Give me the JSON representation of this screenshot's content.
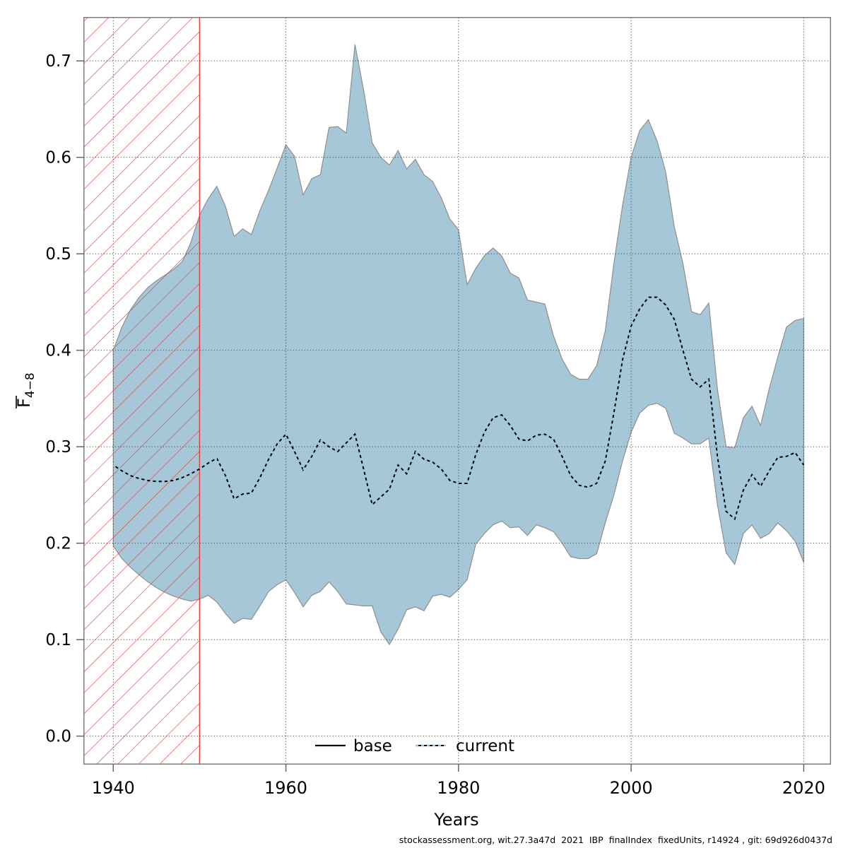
{
  "footer": {
    "text": "stockassessment.org, wit.27.3a47d  2021  IBP  finalIndex  fixedUnits, r14924 , git: 69d926d0437d"
  },
  "chart_data": {
    "type": "area",
    "title": "",
    "xlabel": "Years",
    "ylabel": {
      "main": "F",
      "subscript": "4−8",
      "overline": true
    },
    "x_ticks": [
      1940,
      1960,
      1980,
      2000,
      2020
    ],
    "y_ticks": [
      0.0,
      0.1,
      0.2,
      0.3,
      0.4,
      0.5,
      0.6,
      0.7
    ],
    "xlim": [
      1936.6,
      2023.1
    ],
    "ylim": [
      -0.029,
      0.745
    ],
    "grid": true,
    "legend_position": "bottom-center-inside",
    "legend": [
      {
        "label": "base",
        "line_style": "solid",
        "color": "#000000"
      },
      {
        "label": "current",
        "line_style": "dotted",
        "color": "#9dc6de"
      }
    ],
    "excluded_region": {
      "x_start": 1936.6,
      "x_end": 1950,
      "style": "red-diagonal-hatch"
    },
    "colors": {
      "band_fill": "#a6c7d8",
      "band_edge": "#8f8f8f",
      "base_line": "#000000",
      "current_line": "#9dc6de",
      "hatch_red": "#e83b3b",
      "grid": "#4a4a4a",
      "frame": "#7d7d7d",
      "tick": "#666666"
    },
    "years": [
      1940,
      1941,
      1942,
      1943,
      1944,
      1945,
      1946,
      1947,
      1948,
      1949,
      1950,
      1951,
      1952,
      1953,
      1954,
      1955,
      1956,
      1957,
      1958,
      1959,
      1960,
      1961,
      1962,
      1963,
      1964,
      1965,
      1966,
      1967,
      1968,
      1969,
      1970,
      1971,
      1972,
      1973,
      1974,
      1975,
      1976,
      1977,
      1978,
      1979,
      1980,
      1981,
      1982,
      1983,
      1984,
      1985,
      1986,
      1987,
      1988,
      1989,
      1990,
      1991,
      1992,
      1993,
      1994,
      1995,
      1996,
      1997,
      1998,
      1999,
      2000,
      2001,
      2002,
      2003,
      2004,
      2005,
      2006,
      2007,
      2008,
      2009,
      2010,
      2011,
      2012,
      2013,
      2014,
      2015,
      2016,
      2017,
      2018,
      2019,
      2020
    ],
    "line": {
      "name": "current (base coincides)",
      "values": [
        0.281,
        0.275,
        0.27,
        0.267,
        0.265,
        0.264,
        0.264,
        0.265,
        0.268,
        0.272,
        0.277,
        0.283,
        0.288,
        0.27,
        0.246,
        0.251,
        0.252,
        0.268,
        0.287,
        0.303,
        0.313,
        0.295,
        0.276,
        0.29,
        0.307,
        0.3,
        0.295,
        0.304,
        0.313,
        0.277,
        0.24,
        0.248,
        0.256,
        0.281,
        0.272,
        0.295,
        0.287,
        0.284,
        0.277,
        0.265,
        0.262,
        0.262,
        0.292,
        0.315,
        0.33,
        0.333,
        0.322,
        0.308,
        0.306,
        0.312,
        0.313,
        0.308,
        0.29,
        0.27,
        0.26,
        0.258,
        0.262,
        0.285,
        0.335,
        0.39,
        0.425,
        0.443,
        0.455,
        0.455,
        0.447,
        0.432,
        0.4,
        0.37,
        0.362,
        0.37,
        0.29,
        0.233,
        0.225,
        0.255,
        0.271,
        0.259,
        0.275,
        0.289,
        0.29,
        0.294,
        0.281
      ]
    },
    "band": {
      "upper": [
        0.4,
        0.424,
        0.442,
        0.455,
        0.465,
        0.472,
        0.478,
        0.484,
        0.492,
        0.512,
        0.54,
        0.557,
        0.57,
        0.549,
        0.518,
        0.526,
        0.52,
        0.545,
        0.566,
        0.589,
        0.613,
        0.601,
        0.561,
        0.578,
        0.582,
        0.631,
        0.632,
        0.625,
        0.717,
        0.67,
        0.615,
        0.6,
        0.592,
        0.607,
        0.588,
        0.598,
        0.582,
        0.575,
        0.558,
        0.536,
        0.525,
        0.468,
        0.485,
        0.498,
        0.506,
        0.498,
        0.48,
        0.475,
        0.452,
        0.45,
        0.448,
        0.415,
        0.391,
        0.375,
        0.37,
        0.37,
        0.384,
        0.42,
        0.49,
        0.55,
        0.6,
        0.628,
        0.639,
        0.617,
        0.585,
        0.528,
        0.49,
        0.44,
        0.437,
        0.449,
        0.36,
        0.3,
        0.299,
        0.33,
        0.342,
        0.322,
        0.36,
        0.393,
        0.424,
        0.431,
        0.433
      ],
      "lower": [
        0.197,
        0.184,
        0.175,
        0.167,
        0.16,
        0.154,
        0.149,
        0.145,
        0.142,
        0.14,
        0.142,
        0.146,
        0.139,
        0.127,
        0.117,
        0.122,
        0.121,
        0.135,
        0.15,
        0.157,
        0.162,
        0.149,
        0.134,
        0.146,
        0.15,
        0.16,
        0.15,
        0.137,
        0.136,
        0.135,
        0.135,
        0.108,
        0.095,
        0.111,
        0.131,
        0.134,
        0.13,
        0.145,
        0.147,
        0.144,
        0.152,
        0.162,
        0.199,
        0.21,
        0.219,
        0.223,
        0.216,
        0.217,
        0.208,
        0.219,
        0.216,
        0.212,
        0.2,
        0.186,
        0.184,
        0.184,
        0.189,
        0.221,
        0.25,
        0.285,
        0.315,
        0.335,
        0.343,
        0.345,
        0.34,
        0.314,
        0.309,
        0.303,
        0.303,
        0.309,
        0.24,
        0.19,
        0.178,
        0.21,
        0.219,
        0.205,
        0.21,
        0.221,
        0.213,
        0.202,
        0.18
      ]
    }
  }
}
